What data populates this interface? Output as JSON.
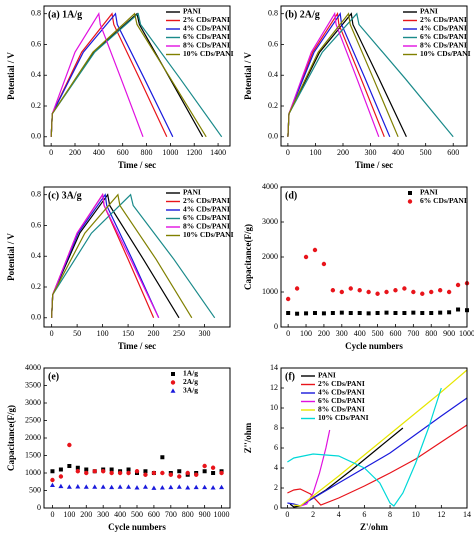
{
  "chart_data": [
    {
      "type": "line",
      "title": "(a) 1A/g",
      "xlabel": "Time / sec",
      "ylabel": "Potential / V",
      "xlim": [
        -60,
        1500
      ],
      "ylim": [
        -0.06,
        0.85
      ],
      "xticks": [
        0,
        200,
        400,
        600,
        800,
        1000,
        1200,
        1400
      ],
      "yticks": [
        {
          "value": 0,
          "label": "0.0"
        },
        {
          "value": 0.2,
          "label": "0.2"
        },
        {
          "value": 0.4,
          "label": "0.4"
        },
        {
          "value": 0.6,
          "label": "0.6"
        },
        {
          "value": 0.8,
          "label": "0.8"
        }
      ],
      "legend": "upper right",
      "series": [
        {
          "name": "PANI",
          "color": "#000000",
          "x": [
            0,
            10,
            360,
            720,
            740,
            995,
            1270
          ],
          "values": [
            0,
            0.15,
            0.55,
            0.8,
            0.73,
            0.38,
            0
          ]
        },
        {
          "name": "2% CDs/PANI",
          "color": "#e8141b",
          "x": [
            0,
            10,
            255,
            510,
            525,
            740,
            970
          ],
          "values": [
            0,
            0.15,
            0.55,
            0.8,
            0.73,
            0.38,
            0
          ]
        },
        {
          "name": "4% CDs/PANI",
          "color": "#1a1adc",
          "x": [
            0,
            10,
            270,
            540,
            555,
            780,
            1020
          ],
          "values": [
            0,
            0.15,
            0.55,
            0.8,
            0.73,
            0.38,
            0
          ]
        },
        {
          "name": "6% CDs/PANI",
          "color": "#1a8a8a",
          "x": [
            0,
            10,
            365,
            730,
            750,
            1080,
            1430
          ],
          "values": [
            0,
            0.15,
            0.55,
            0.8,
            0.73,
            0.38,
            0
          ]
        },
        {
          "name": "8% CDs/PANI",
          "color": "#e010e0",
          "x": [
            0,
            10,
            200,
            400,
            412,
            585,
            770
          ],
          "values": [
            0,
            0.15,
            0.55,
            0.8,
            0.73,
            0.38,
            0
          ]
        },
        {
          "name": "10% CDs/PANI",
          "color": "#808000",
          "x": [
            0,
            10,
            350,
            700,
            720,
            1000,
            1300
          ],
          "values": [
            0,
            0.15,
            0.55,
            0.8,
            0.73,
            0.38,
            0
          ]
        }
      ]
    },
    {
      "type": "line",
      "title": "(b) 2A/g",
      "xlabel": "Time / sec",
      "ylabel": "Potential / V",
      "xlim": [
        -25,
        650
      ],
      "ylim": [
        -0.06,
        0.85
      ],
      "xticks": [
        0,
        100,
        200,
        300,
        400,
        500,
        600
      ],
      "yticks": [
        {
          "value": 0,
          "label": "0.0"
        },
        {
          "value": 0.2,
          "label": "0.2"
        },
        {
          "value": 0.4,
          "label": "0.4"
        },
        {
          "value": 0.6,
          "label": "0.6"
        },
        {
          "value": 0.8,
          "label": "0.8"
        }
      ],
      "legend": "upper right",
      "series": [
        {
          "name": "PANI",
          "color": "#000000",
          "x": [
            0,
            4,
            115,
            230,
            236,
            330,
            430
          ],
          "values": [
            0,
            0.15,
            0.55,
            0.8,
            0.73,
            0.38,
            0
          ]
        },
        {
          "name": "2% CDs/PANI",
          "color": "#e8141b",
          "x": [
            0,
            4,
            90,
            180,
            185,
            265,
            350
          ],
          "values": [
            0,
            0.15,
            0.55,
            0.8,
            0.73,
            0.38,
            0
          ]
        },
        {
          "name": "4% CDs/PANI",
          "color": "#1a1adc",
          "x": [
            0,
            4,
            95,
            190,
            195,
            280,
            370
          ],
          "values": [
            0,
            0.15,
            0.55,
            0.8,
            0.73,
            0.38,
            0
          ]
        },
        {
          "name": "6% CDs/PANI",
          "color": "#1a8a8a",
          "x": [
            0,
            4,
            125,
            250,
            258,
            425,
            600
          ],
          "values": [
            0,
            0.15,
            0.55,
            0.8,
            0.73,
            0.38,
            0
          ]
        },
        {
          "name": "8% CDs/PANI",
          "color": "#e010e0",
          "x": [
            0,
            4,
            85,
            170,
            175,
            250,
            330
          ],
          "values": [
            0,
            0.15,
            0.55,
            0.8,
            0.73,
            0.38,
            0
          ]
        },
        {
          "name": "10% CDs/PANI",
          "color": "#808000",
          "x": [
            0,
            4,
            110,
            220,
            226,
            310,
            400
          ],
          "values": [
            0,
            0.15,
            0.55,
            0.8,
            0.73,
            0.38,
            0
          ]
        }
      ]
    },
    {
      "type": "line",
      "title": "(c) 3A/g",
      "xlabel": "Time / sec",
      "ylabel": "Potential / V",
      "xlim": [
        -15,
        350
      ],
      "ylim": [
        -0.06,
        0.85
      ],
      "xticks": [
        0,
        50,
        100,
        150,
        200,
        250,
        300
      ],
      "yticks": [
        {
          "value": 0,
          "label": "0.0"
        },
        {
          "value": 0.2,
          "label": "0.2"
        },
        {
          "value": 0.4,
          "label": "0.4"
        },
        {
          "value": 0.6,
          "label": "0.6"
        },
        {
          "value": 0.8,
          "label": "0.8"
        }
      ],
      "legend": "upper right",
      "series": [
        {
          "name": "PANI",
          "color": "#000000",
          "x": [
            0,
            2,
            55,
            110,
            114,
            180,
            250
          ],
          "values": [
            0,
            0.15,
            0.55,
            0.8,
            0.73,
            0.38,
            0
          ]
        },
        {
          "name": "2% CDs/PANI",
          "color": "#e8141b",
          "x": [
            0,
            2,
            50,
            100,
            103,
            150,
            200
          ],
          "values": [
            0,
            0.15,
            0.55,
            0.8,
            0.73,
            0.38,
            0
          ]
        },
        {
          "name": "4% CDs/PANI",
          "color": "#1a1adc",
          "x": [
            0,
            2,
            52,
            105,
            108,
            158,
            210
          ],
          "values": [
            0,
            0.15,
            0.55,
            0.8,
            0.73,
            0.38,
            0
          ]
        },
        {
          "name": "6% CDs/PANI",
          "color": "#1a8a8a",
          "x": [
            0,
            2,
            78,
            155,
            160,
            240,
            320
          ],
          "values": [
            0,
            0.15,
            0.55,
            0.8,
            0.73,
            0.38,
            0
          ]
        },
        {
          "name": "8% CDs/PANI",
          "color": "#e010e0",
          "x": [
            0,
            2,
            50,
            100,
            103,
            155,
            210
          ],
          "values": [
            0,
            0.15,
            0.55,
            0.8,
            0.73,
            0.38,
            0
          ]
        },
        {
          "name": "10% CDs/PANI",
          "color": "#808000",
          "x": [
            0,
            2,
            65,
            130,
            134,
            205,
            275
          ],
          "values": [
            0,
            0.15,
            0.55,
            0.8,
            0.73,
            0.38,
            0
          ]
        }
      ]
    },
    {
      "type": "scatter",
      "title": "(d)",
      "xlabel": "Cycle numbers",
      "ylabel": "Capacitance(F/g)",
      "xlim": [
        -40,
        1000
      ],
      "ylim": [
        0,
        4000
      ],
      "xticks": [
        0,
        100,
        200,
        300,
        400,
        500,
        600,
        700,
        800,
        900,
        1000
      ],
      "yticks": [
        0,
        1000,
        2000,
        3000,
        4000
      ],
      "legend": "upper right",
      "series": [
        {
          "name": "PANI",
          "color": "#000000",
          "marker": "square",
          "x": [
            0,
            50,
            100,
            150,
            200,
            250,
            300,
            350,
            400,
            450,
            500,
            550,
            600,
            650,
            700,
            750,
            800,
            850,
            900,
            950,
            1000
          ],
          "values": [
            400,
            380,
            390,
            400,
            390,
            400,
            410,
            400,
            400,
            390,
            400,
            410,
            400,
            400,
            410,
            400,
            400,
            410,
            420,
            500,
            480
          ]
        },
        {
          "name": "6%  CDs/PANI",
          "color": "#e8141b",
          "marker": "circle",
          "x": [
            0,
            50,
            100,
            150,
            200,
            250,
            300,
            350,
            400,
            450,
            500,
            550,
            600,
            650,
            700,
            750,
            800,
            850,
            900,
            950,
            1000
          ],
          "values": [
            800,
            1100,
            2000,
            2200,
            1800,
            1050,
            1000,
            1100,
            1050,
            1000,
            950,
            1000,
            1050,
            1100,
            1000,
            950,
            1000,
            1050,
            1000,
            1200,
            1250
          ]
        }
      ]
    },
    {
      "type": "scatter",
      "title": "(e)",
      "xlabel": "Cycle numbers",
      "ylabel": "Capacitance(F/g)",
      "xlim": [
        -50,
        1050
      ],
      "ylim": [
        0,
        4000
      ],
      "xticks": [
        0,
        100,
        200,
        300,
        400,
        500,
        600,
        700,
        800,
        900,
        1000
      ],
      "yticks": [
        0,
        500,
        1000,
        1500,
        2000,
        2500,
        3000,
        3500,
        4000
      ],
      "legend": "upper right",
      "series": [
        {
          "name": "1A/g",
          "color": "#000000",
          "marker": "square",
          "x": [
            0,
            50,
            100,
            150,
            200,
            250,
            300,
            350,
            400,
            450,
            500,
            550,
            600,
            650,
            700,
            750,
            800,
            850,
            900,
            950,
            1000
          ],
          "values": [
            1050,
            1100,
            1200,
            1150,
            1100,
            1050,
            1100,
            1100,
            1050,
            1100,
            1000,
            1050,
            1000,
            1450,
            1000,
            1050,
            950,
            1000,
            1050,
            1000,
            1050
          ]
        },
        {
          "name": "2A/g",
          "color": "#e8141b",
          "marker": "circle",
          "x": [
            0,
            50,
            100,
            150,
            200,
            250,
            300,
            350,
            400,
            450,
            500,
            550,
            600,
            650,
            700,
            750,
            800,
            850,
            900,
            950,
            1000
          ],
          "values": [
            800,
            900,
            1800,
            1050,
            1000,
            1050,
            1050,
            1000,
            1000,
            1000,
            1050,
            950,
            1000,
            1000,
            950,
            900,
            1000,
            950,
            1200,
            1150,
            1000
          ]
        },
        {
          "name": "3A/g",
          "color": "#1a1adc",
          "marker": "triangle",
          "x": [
            0,
            50,
            100,
            150,
            200,
            250,
            300,
            350,
            400,
            450,
            500,
            550,
            600,
            650,
            700,
            750,
            800,
            850,
            900,
            950,
            1000
          ],
          "values": [
            650,
            620,
            600,
            610,
            600,
            600,
            600,
            590,
            600,
            600,
            580,
            600,
            570,
            580,
            590,
            600,
            580,
            590,
            590,
            580,
            590
          ]
        }
      ]
    },
    {
      "type": "line",
      "title": "(f)",
      "xlabel": "Z'/ohm",
      "ylabel": "Z''/ohm",
      "xlim": [
        -0.5,
        14
      ],
      "ylim": [
        0,
        14
      ],
      "xticks": [
        0,
        2,
        4,
        6,
        8,
        10,
        12,
        14
      ],
      "yticks": [
        0,
        2,
        4,
        6,
        8,
        10,
        12,
        14
      ],
      "legend": "upper left",
      "series": [
        {
          "name": "PANI",
          "color": "#000000",
          "x": [
            0.2,
            0.5,
            1,
            3,
            5,
            7,
            9
          ],
          "values": [
            0.4,
            0.1,
            0.2,
            1.8,
            3.8,
            5.9,
            8
          ]
        },
        {
          "name": "2% CDs/PANI",
          "color": "#e8141b",
          "x": [
            0,
            0.5,
            1,
            1.8,
            2.6,
            4,
            6,
            8,
            10,
            12,
            14
          ],
          "values": [
            1.5,
            1.8,
            1.9,
            1.4,
            0.3,
            1.0,
            2.2,
            3.5,
            4.9,
            6.6,
            8.3
          ]
        },
        {
          "name": "4% CDs/PANI",
          "color": "#1a1adc",
          "x": [
            0,
            0.5,
            1,
            4,
            8,
            12,
            14
          ],
          "values": [
            0.5,
            0.4,
            0.2,
            2.5,
            5.5,
            9.2,
            11
          ]
        },
        {
          "name": "6% CDs/PANI",
          "color": "#e010e0",
          "x": [
            1,
            1.5,
            2,
            2.5,
            3,
            3.3
          ],
          "values": [
            0.2,
            0.4,
            1.5,
            3.5,
            6,
            7.8
          ]
        },
        {
          "name": "8% CDs/PANI",
          "color": "#e6e600",
          "x": [
            0.5,
            1,
            4,
            8,
            12,
            14
          ],
          "values": [
            0.3,
            0.2,
            3.2,
            7.4,
            11.6,
            13.8
          ]
        },
        {
          "name": "10% CDs/PANI",
          "color": "#00d8d8",
          "x": [
            0,
            0.5,
            2,
            4,
            6,
            7.2,
            8,
            8.3,
            9,
            10,
            11,
            12
          ],
          "values": [
            4.6,
            5.0,
            5.4,
            5.2,
            4,
            2.5,
            0.5,
            0.2,
            1.5,
            4.5,
            8,
            12
          ]
        }
      ]
    }
  ]
}
